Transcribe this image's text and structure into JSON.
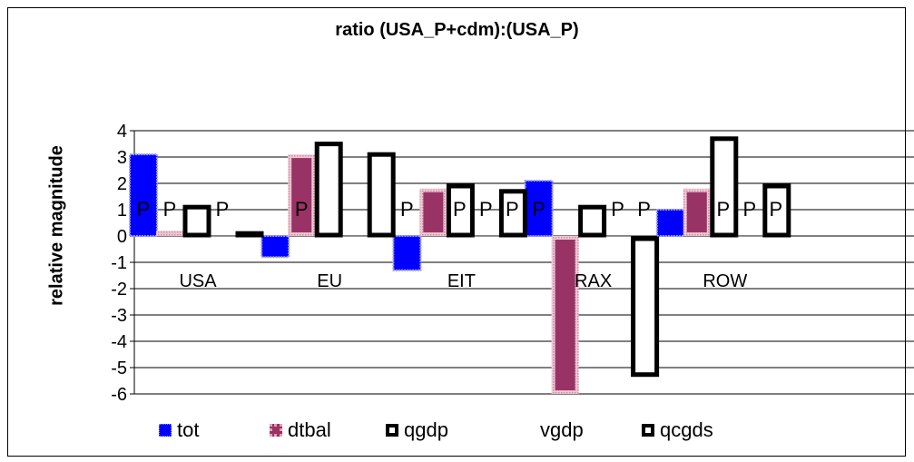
{
  "chart_data": {
    "type": "bar",
    "title": "ratio (USA_P+cdm):(USA_P)",
    "ylabel": "relative magnitude",
    "xlabel": "",
    "categories": [
      "USA",
      "EU",
      "EIT",
      "RAX",
      "ROW"
    ],
    "ylim": [
      -6,
      4
    ],
    "yticks": [
      4,
      3,
      2,
      1,
      0,
      -1,
      -2,
      -3,
      -4,
      -5,
      -6
    ],
    "grid": true,
    "legend_position": "bottom",
    "series": [
      {
        "name": "tot",
        "values": [
          3.1,
          -0.8,
          -1.3,
          2.1,
          1.0
        ],
        "style": "filled",
        "color": "#0000ff"
      },
      {
        "name": "dtbal",
        "values": [
          0.2,
          3.1,
          1.8,
          -6.0,
          1.8
        ],
        "style": "filled-hatched",
        "color": "#993366"
      },
      {
        "name": "qgdp",
        "values": [
          1.2,
          3.6,
          2.0,
          1.2,
          3.8
        ],
        "style": "outline",
        "color": "#000000"
      },
      {
        "name": "vgdp",
        "values": [
          0.0,
          0.0,
          0.0,
          0.0,
          0.0
        ],
        "style": "none",
        "color": "#ffffff"
      },
      {
        "name": "qcgds",
        "values": [
          0.2,
          3.2,
          1.8,
          -5.3,
          2.0
        ],
        "style": "outline",
        "color": "#000000"
      }
    ],
    "markers": [
      {
        "category": "USA",
        "series": "tot",
        "label": "P"
      },
      {
        "category": "USA",
        "series": "dtbal",
        "label": "P"
      },
      {
        "category": "USA",
        "series": "vgdp",
        "label": "P"
      },
      {
        "category": "EU",
        "series": "dtbal",
        "label": "P"
      },
      {
        "category": "EIT",
        "series": "tot",
        "label": "P"
      },
      {
        "category": "EIT",
        "series": "qgdp",
        "label": "P"
      },
      {
        "category": "EIT",
        "series": "vgdp",
        "label": "P"
      },
      {
        "category": "EIT",
        "series": "qcgds",
        "label": "P"
      },
      {
        "category": "RAX",
        "series": "tot",
        "label": "P"
      },
      {
        "category": "RAX",
        "series": "vgdp",
        "label": "P"
      },
      {
        "category": "RAX",
        "series": "qcgds",
        "label": "P"
      },
      {
        "category": "ROW",
        "series": "qgdp",
        "label": "P"
      },
      {
        "category": "ROW",
        "series": "vgdp",
        "label": "P"
      },
      {
        "category": "ROW",
        "series": "qcgds",
        "label": "P"
      }
    ]
  },
  "legend": {
    "items": [
      "tot",
      "dtbal",
      "qgdp",
      "vgdp",
      "qcgds"
    ]
  }
}
